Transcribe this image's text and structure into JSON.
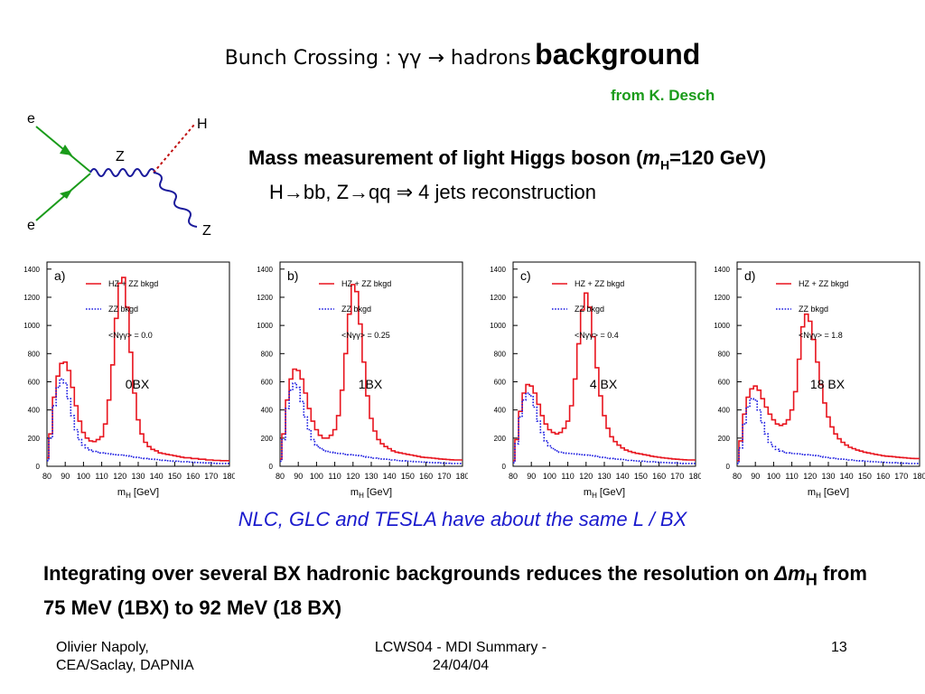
{
  "slide": {
    "title_prefix": "Bunch Crossing : γγ → hadrons",
    "title_emph": "background",
    "credit": "from K. Desch",
    "mass_text_a": "Mass measurement of light Higgs boson (",
    "mass_m": "m",
    "mass_sub": "H",
    "mass_text_b": "=120 GeV)",
    "channel": "H→bb, Z→qq  ⇒  4 jets reconstruction",
    "same_lumi": "NLC, GLC and TESLA have about the same L / BX",
    "conclusion_a": "Integrating over several BX hadronic backgrounds reduces the resolution on ",
    "conclusion_delta": "Δm",
    "conclusion_sub": "H",
    "conclusion_b": " from 75 MeV (1BX) to 92 MeV (18 BX)",
    "footer_author_1": "Olivier Napoly,",
    "footer_author_2": "CEA/Saclay, DAPNIA",
    "footer_event_1": "LCWS04 - MDI Summary -",
    "footer_event_2": "24/04/04",
    "page_number": "13"
  },
  "feynman": {
    "e1": "e",
    "e2": "e",
    "z1": "Z",
    "z2": "Z",
    "h": "H"
  },
  "colors": {
    "signal": "#e8141e",
    "zz": "#1a1ae0",
    "credit": "#1a9b1a",
    "note": "#1a1acd"
  },
  "chart_data": [
    {
      "type": "line",
      "panel": "a)",
      "bx_label": "0BX",
      "nbar": "<Nγγ> = 0.0",
      "xlabel_m": "m",
      "xlabel_sub": "H",
      "xlabel_unit": "[GeV]",
      "xlim": [
        80,
        180
      ],
      "ylim": [
        0,
        1450
      ],
      "xticks": [
        "80",
        "90",
        "100",
        "110",
        "120",
        "130",
        "140",
        "150",
        "160",
        "170",
        "180"
      ],
      "yticks": [
        "0",
        "200",
        "400",
        "600",
        "800",
        "1000",
        "1200",
        "1400"
      ],
      "series": [
        {
          "name": "HZ + ZZ bkgd",
          "style": "solid",
          "x": [
            80,
            82,
            84,
            86,
            88,
            90,
            92,
            94,
            96,
            98,
            100,
            102,
            104,
            106,
            108,
            110,
            112,
            114,
            116,
            118,
            120,
            122,
            124,
            126,
            128,
            130,
            132,
            134,
            136,
            138,
            140,
            142,
            144,
            146,
            148,
            150,
            152,
            154,
            156,
            158,
            160,
            162,
            164,
            166,
            168,
            170,
            172,
            174,
            176,
            178,
            180
          ],
          "y": [
            60,
            230,
            490,
            640,
            730,
            740,
            680,
            560,
            430,
            320,
            240,
            200,
            180,
            175,
            190,
            210,
            300,
            470,
            720,
            1050,
            1300,
            1340,
            1130,
            810,
            520,
            330,
            230,
            170,
            140,
            120,
            110,
            95,
            90,
            85,
            80,
            75,
            70,
            65,
            60,
            60,
            55,
            55,
            50,
            50,
            45,
            45,
            42,
            42,
            40,
            40,
            40
          ]
        },
        {
          "name": "ZZ bkgd",
          "style": "dotted",
          "x": [
            80,
            82,
            84,
            86,
            88,
            90,
            92,
            94,
            96,
            98,
            100,
            102,
            104,
            106,
            108,
            110,
            112,
            114,
            116,
            118,
            120,
            122,
            124,
            126,
            128,
            130,
            132,
            134,
            136,
            138,
            140,
            142,
            144,
            146,
            148,
            150,
            152,
            154,
            156,
            158,
            160,
            162,
            164,
            166,
            168,
            170,
            172,
            174,
            176,
            178,
            180
          ],
          "y": [
            40,
            200,
            430,
            560,
            620,
            590,
            480,
            360,
            260,
            190,
            150,
            130,
            115,
            105,
            100,
            95,
            92,
            90,
            85,
            82,
            80,
            78,
            75,
            70,
            65,
            62,
            58,
            55,
            52,
            50,
            48,
            45,
            42,
            40,
            38,
            36,
            35,
            33,
            32,
            30,
            28,
            27,
            26,
            25,
            24,
            22,
            21,
            20,
            20,
            20,
            20
          ]
        }
      ]
    },
    {
      "type": "line",
      "panel": "b)",
      "bx_label": "1BX",
      "nbar": "<Nγγ> = 0.25",
      "xlabel_m": "m",
      "xlabel_sub": "H",
      "xlabel_unit": "[GeV]",
      "xlim": [
        80,
        180
      ],
      "ylim": [
        0,
        1450
      ],
      "xticks": [
        "80",
        "90",
        "100",
        "110",
        "120",
        "130",
        "140",
        "150",
        "160",
        "170",
        "180"
      ],
      "yticks": [
        "0",
        "200",
        "400",
        "600",
        "800",
        "1000",
        "1200",
        "1400"
      ],
      "series": [
        {
          "name": "HZ + ZZ bkgd",
          "style": "solid",
          "x": [
            80,
            82,
            84,
            86,
            88,
            90,
            92,
            94,
            96,
            98,
            100,
            102,
            104,
            106,
            108,
            110,
            112,
            114,
            116,
            118,
            120,
            122,
            124,
            126,
            128,
            130,
            132,
            134,
            136,
            138,
            140,
            142,
            144,
            146,
            148,
            150,
            152,
            154,
            156,
            158,
            160,
            162,
            164,
            166,
            168,
            170,
            172,
            174,
            176,
            178,
            180
          ],
          "y": [
            50,
            230,
            470,
            620,
            690,
            680,
            620,
            520,
            410,
            320,
            260,
            220,
            200,
            200,
            220,
            260,
            360,
            540,
            800,
            1080,
            1290,
            1240,
            1010,
            740,
            500,
            340,
            250,
            190,
            160,
            140,
            125,
            110,
            100,
            95,
            90,
            85,
            80,
            75,
            70,
            65,
            62,
            60,
            58,
            55,
            52,
            50,
            48,
            46,
            45,
            45,
            45
          ]
        },
        {
          "name": "ZZ bkgd",
          "style": "dotted",
          "x": [
            80,
            82,
            84,
            86,
            88,
            90,
            92,
            94,
            96,
            98,
            100,
            102,
            104,
            106,
            108,
            110,
            112,
            114,
            116,
            118,
            120,
            122,
            124,
            126,
            128,
            130,
            132,
            134,
            136,
            138,
            140,
            142,
            144,
            146,
            148,
            150,
            152,
            154,
            156,
            158,
            160,
            162,
            164,
            166,
            168,
            170,
            172,
            174,
            176,
            178,
            180
          ],
          "y": [
            35,
            190,
            410,
            540,
            590,
            560,
            460,
            350,
            260,
            190,
            150,
            130,
            115,
            105,
            100,
            95,
            92,
            90,
            85,
            82,
            80,
            78,
            75,
            70,
            65,
            62,
            58,
            55,
            52,
            50,
            48,
            45,
            42,
            40,
            38,
            36,
            35,
            33,
            32,
            30,
            28,
            27,
            26,
            25,
            24,
            22,
            21,
            20,
            20,
            20,
            20
          ]
        }
      ]
    },
    {
      "type": "line",
      "panel": "c)",
      "bx_label": "4 BX",
      "nbar": "<Nγγ> = 0.4",
      "xlabel_m": "m",
      "xlabel_sub": "H",
      "xlabel_unit": "[GeV]",
      "xlim": [
        80,
        180
      ],
      "ylim": [
        0,
        1450
      ],
      "xticks": [
        "80",
        "90",
        "100",
        "110",
        "120",
        "130",
        "140",
        "150",
        "160",
        "170",
        "180"
      ],
      "yticks": [
        "0",
        "200",
        "400",
        "600",
        "800",
        "1000",
        "1200",
        "1400"
      ],
      "series": [
        {
          "name": "HZ + ZZ bkgd",
          "style": "solid",
          "x": [
            80,
            82,
            84,
            86,
            88,
            90,
            92,
            94,
            96,
            98,
            100,
            102,
            104,
            106,
            108,
            110,
            112,
            114,
            116,
            118,
            120,
            122,
            124,
            126,
            128,
            130,
            132,
            134,
            136,
            138,
            140,
            142,
            144,
            146,
            148,
            150,
            152,
            154,
            156,
            158,
            160,
            162,
            164,
            166,
            168,
            170,
            172,
            174,
            176,
            178,
            180
          ],
          "y": [
            40,
            190,
            390,
            520,
            580,
            570,
            520,
            440,
            360,
            300,
            260,
            240,
            230,
            240,
            270,
            320,
            430,
            620,
            870,
            1110,
            1230,
            1130,
            920,
            700,
            500,
            360,
            270,
            210,
            175,
            150,
            130,
            115,
            105,
            98,
            92,
            88,
            82,
            78,
            72,
            68,
            64,
            60,
            58,
            55,
            52,
            50,
            48,
            46,
            45,
            45,
            45
          ]
        },
        {
          "name": "ZZ bkgd",
          "style": "dotted",
          "x": [
            80,
            82,
            84,
            86,
            88,
            90,
            92,
            94,
            96,
            98,
            100,
            102,
            104,
            106,
            108,
            110,
            112,
            114,
            116,
            118,
            120,
            122,
            124,
            126,
            128,
            130,
            132,
            134,
            136,
            138,
            140,
            142,
            144,
            146,
            148,
            150,
            152,
            154,
            156,
            158,
            160,
            162,
            164,
            166,
            168,
            170,
            172,
            174,
            176,
            178,
            180
          ],
          "y": [
            25,
            160,
            350,
            470,
            520,
            500,
            420,
            320,
            240,
            180,
            145,
            125,
            110,
            100,
            95,
            92,
            90,
            88,
            85,
            82,
            80,
            78,
            75,
            70,
            65,
            62,
            58,
            55,
            52,
            50,
            48,
            45,
            42,
            40,
            38,
            36,
            35,
            33,
            32,
            30,
            28,
            27,
            26,
            25,
            24,
            22,
            21,
            20,
            20,
            20,
            20
          ]
        }
      ]
    },
    {
      "type": "line",
      "panel": "d)",
      "bx_label": "18 BX",
      "nbar": "<Nγγ> = 1.8",
      "xlabel_m": "m",
      "xlabel_sub": "H",
      "xlabel_unit": "[GeV]",
      "xlim": [
        80,
        180
      ],
      "ylim": [
        0,
        1450
      ],
      "xticks": [
        "80",
        "90",
        "100",
        "110",
        "120",
        "130",
        "140",
        "150",
        "160",
        "170",
        "180"
      ],
      "yticks": [
        "0",
        "200",
        "400",
        "600",
        "800",
        "1000",
        "1200",
        "1400"
      ],
      "series": [
        {
          "name": "HZ + ZZ bkgd",
          "style": "solid",
          "x": [
            80,
            82,
            84,
            86,
            88,
            90,
            92,
            94,
            96,
            98,
            100,
            102,
            104,
            106,
            108,
            110,
            112,
            114,
            116,
            118,
            120,
            122,
            124,
            126,
            128,
            130,
            132,
            134,
            136,
            138,
            140,
            142,
            144,
            146,
            148,
            150,
            152,
            154,
            156,
            158,
            160,
            162,
            164,
            166,
            168,
            170,
            172,
            174,
            176,
            178,
            180
          ],
          "y": [
            40,
            180,
            370,
            490,
            550,
            570,
            540,
            480,
            420,
            370,
            330,
            300,
            290,
            300,
            330,
            400,
            530,
            760,
            990,
            1080,
            1030,
            900,
            740,
            580,
            450,
            350,
            280,
            230,
            195,
            170,
            150,
            135,
            125,
            115,
            108,
            100,
            95,
            90,
            85,
            80,
            75,
            72,
            70,
            68,
            65,
            62,
            60,
            58,
            56,
            55,
            55
          ]
        },
        {
          "name": "ZZ bkgd",
          "style": "dotted",
          "x": [
            80,
            82,
            84,
            86,
            88,
            90,
            92,
            94,
            96,
            98,
            100,
            102,
            104,
            106,
            108,
            110,
            112,
            114,
            116,
            118,
            120,
            122,
            124,
            126,
            128,
            130,
            132,
            134,
            136,
            138,
            140,
            142,
            144,
            146,
            148,
            150,
            152,
            154,
            156,
            158,
            160,
            162,
            164,
            166,
            168,
            170,
            172,
            174,
            176,
            178,
            180
          ],
          "y": [
            20,
            130,
            300,
            420,
            480,
            470,
            400,
            310,
            230,
            170,
            140,
            120,
            108,
            100,
            95,
            92,
            90,
            88,
            85,
            82,
            80,
            78,
            75,
            70,
            65,
            62,
            58,
            55,
            52,
            50,
            48,
            45,
            42,
            40,
            38,
            36,
            35,
            33,
            32,
            30,
            28,
            27,
            26,
            25,
            24,
            22,
            21,
            20,
            20,
            20,
            20
          ]
        }
      ]
    }
  ]
}
